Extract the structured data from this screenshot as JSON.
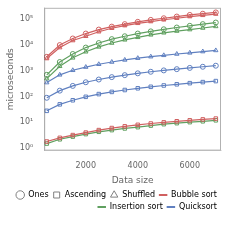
{
  "chart_data": {
    "type": "line",
    "xlabel": "Data size",
    "ylabel": "microseconds",
    "log": "y",
    "grid": false,
    "legend": "lower right",
    "x": [
      500,
      1000,
      1500,
      2000,
      2500,
      3000,
      3500,
      4000,
      4500,
      5000,
      5500,
      6000,
      6500,
      7000
    ],
    "series": [
      {
        "name": "Bubble sort",
        "color": "#d06060",
        "marker": "circle",
        "values": [
          3500,
          10000,
          18000,
          28000,
          40000,
          52000,
          65000,
          80000,
          95000,
          110000,
          128000,
          148000,
          165000,
          185000
        ]
      },
      {
        "name": "Bubble sort",
        "color": "#d06060",
        "marker": "triangle",
        "values": [
          3000,
          8000,
          15000,
          22000,
          33000,
          45000,
          57000,
          70000,
          82000,
          96000,
          110000,
          128000,
          143000,
          160000
        ]
      },
      {
        "name": "Bubble sort",
        "color": "#d06060",
        "marker": "square",
        "values": [
          1.8,
          2.5,
          3.2,
          4.0,
          5.0,
          6.0,
          7.0,
          8.0,
          9.0,
          10.0,
          11.0,
          12.0,
          13.0,
          14.0
        ]
      },
      {
        "name": "Insertion sort",
        "color": "#60a060",
        "marker": "circle",
        "values": [
          700,
          2200,
          4500,
          8000,
          12000,
          17000,
          22000,
          28000,
          34000,
          41000,
          48000,
          56000,
          65000,
          75000
        ]
      },
      {
        "name": "Insertion sort",
        "color": "#60a060",
        "marker": "triangle",
        "values": [
          500,
          1500,
          3200,
          5500,
          8500,
          12000,
          16000,
          20000,
          25000,
          30000,
          35000,
          40000,
          46000,
          53000
        ]
      },
      {
        "name": "Insertion sort",
        "color": "#60a060",
        "marker": "square",
        "values": [
          1.5,
          2.2,
          2.8,
          3.5,
          4.3,
          5.0,
          5.8,
          6.5,
          7.5,
          8.5,
          9.3,
          10.2,
          11.0,
          12.0
        ]
      },
      {
        "name": "Quicksort",
        "color": "#6080c0",
        "marker": "circle",
        "values": [
          90,
          170,
          260,
          360,
          460,
          570,
          680,
          800,
          920,
          1040,
          1160,
          1300,
          1440,
          1580
        ]
      },
      {
        "name": "Quicksort",
        "color": "#6080c0",
        "marker": "triangle",
        "values": [
          350,
          700,
          1050,
          1400,
          1800,
          2200,
          2650,
          3100,
          3550,
          4000,
          4500,
          5000,
          5600,
          6200
        ]
      },
      {
        "name": "Quicksort",
        "color": "#6080c0",
        "marker": "square",
        "values": [
          28,
          50,
          72,
          98,
          125,
          152,
          180,
          210,
          240,
          270,
          300,
          332,
          365,
          400
        ]
      }
    ],
    "markers": [
      {
        "name": "Ones",
        "marker": "circle",
        "color": "gray"
      },
      {
        "name": "Ascending",
        "marker": "square",
        "color": "gray"
      },
      {
        "name": "Shuffled",
        "marker": "triangle",
        "color": "gray"
      }
    ],
    "xlim": [
      400,
      7200
    ],
    "ylim": [
      0.8,
      280000
    ],
    "xticks": [
      2000,
      4000,
      6000
    ],
    "yticks": [
      {
        "value": 1,
        "label": "10⁰"
      },
      {
        "value": 10,
        "label": "10¹"
      },
      {
        "value": 100,
        "label": "10²"
      },
      {
        "value": 1000,
        "label": "10³"
      },
      {
        "value": 10000,
        "label": "10⁴"
      },
      {
        "value": 100000,
        "label": "10⁵"
      }
    ]
  }
}
